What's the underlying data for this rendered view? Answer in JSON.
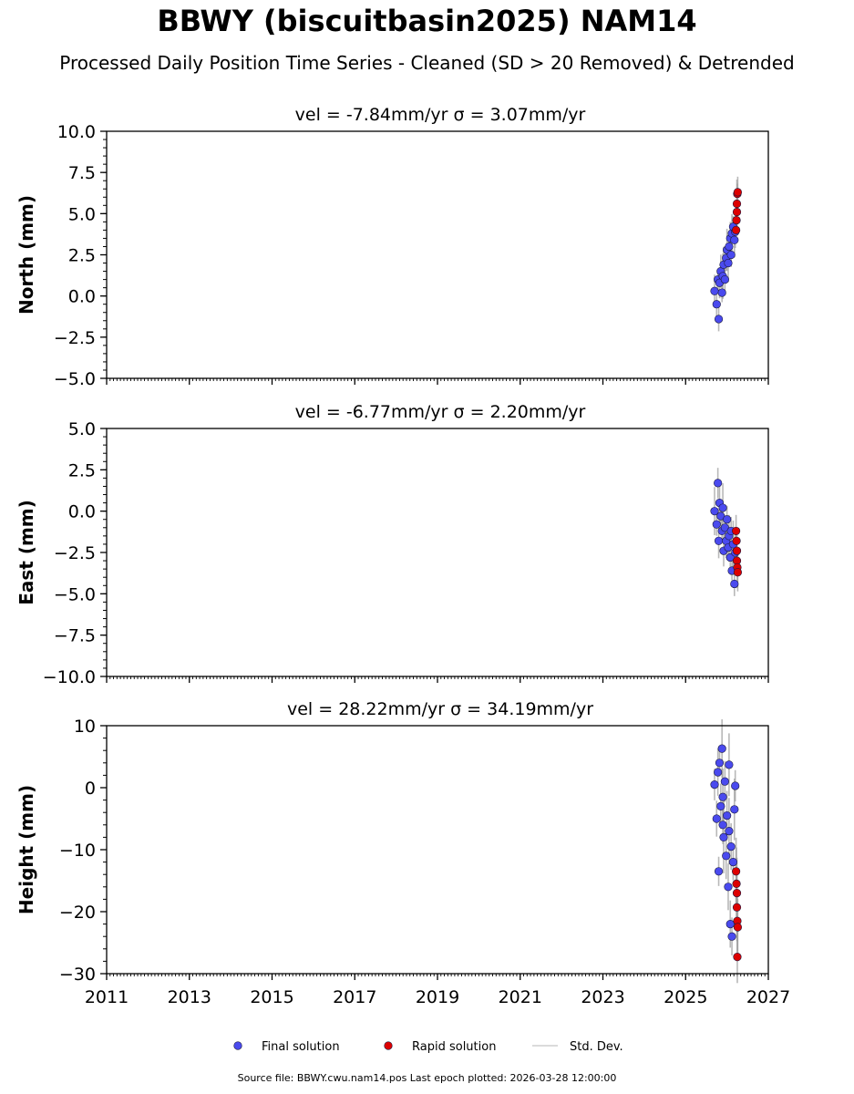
{
  "header": {
    "title": "BBWY (biscuitbasin2025) NAM14",
    "subtitle": "Processed Daily Position Time Series - Cleaned (SD > 20 Removed) & Detrended"
  },
  "footer": {
    "source": "Source file: BBWY.cwu.nam14.pos  Last epoch plotted: 2026-03-28 12:00:00"
  },
  "colors": {
    "final": "#4a4aee",
    "rapid": "#dd0000",
    "stddev": "#9a9a9a"
  },
  "legend": {
    "placement": "bottom-center",
    "final": "Final solution",
    "rapid": "Rapid solution",
    "stddev": "Std. Dev."
  },
  "chart_data": [
    {
      "type": "scatter",
      "title": "vel = -7.84mm/yr   σ = 3.07mm/yr",
      "ylabel": "North (mm)",
      "xlim": [
        2011,
        2027
      ],
      "ylim": [
        -5,
        10
      ],
      "yticks": [
        "10.0",
        "7.5",
        "5.0",
        "2.5",
        "0.0",
        "−2.5",
        "−5.0"
      ],
      "ytick_values": [
        10,
        7.5,
        5,
        2.5,
        0,
        -2.5,
        -5
      ],
      "xticks": [],
      "series": [
        {
          "name": "Final solution",
          "x": [
            2025.7,
            2025.75,
            2025.78,
            2025.8,
            2025.82,
            2025.85,
            2025.88,
            2025.9,
            2025.92,
            2025.95,
            2025.98,
            2026.0,
            2026.03,
            2026.05,
            2026.08,
            2026.1,
            2026.12,
            2026.15,
            2026.18,
            2026.2
          ],
          "y": [
            0.3,
            -0.5,
            1.0,
            -1.4,
            0.8,
            1.5,
            0.2,
            1.2,
            1.9,
            1.0,
            2.3,
            2.8,
            2.0,
            3.0,
            3.5,
            2.5,
            3.8,
            4.2,
            3.4,
            3.9
          ]
        },
        {
          "name": "Rapid solution",
          "x": [
            2026.22,
            2026.23,
            2026.24,
            2026.24,
            2026.25,
            2026.26
          ],
          "y": [
            4.0,
            4.6,
            5.1,
            5.6,
            6.2,
            6.3
          ]
        }
      ]
    },
    {
      "type": "scatter",
      "title": "vel = -6.77mm/yr   σ = 2.20mm/yr",
      "ylabel": "East (mm)",
      "xlim": [
        2011,
        2027
      ],
      "ylim": [
        -10,
        5
      ],
      "yticks": [
        "5.0",
        "2.5",
        "0.0",
        "−2.5",
        "−5.0",
        "−7.5",
        "−10.0"
      ],
      "ytick_values": [
        5,
        2.5,
        0,
        -2.5,
        -5,
        -7.5,
        -10
      ],
      "xticks": [],
      "series": [
        {
          "name": "Final solution",
          "x": [
            2025.7,
            2025.75,
            2025.78,
            2025.8,
            2025.82,
            2025.85,
            2025.88,
            2025.9,
            2025.92,
            2025.95,
            2025.98,
            2026.0,
            2026.03,
            2026.05,
            2026.08,
            2026.1,
            2026.12,
            2026.15,
            2026.18,
            2026.2
          ],
          "y": [
            0.0,
            -0.8,
            1.7,
            -1.8,
            0.5,
            -0.3,
            -1.2,
            0.2,
            -2.4,
            -1.0,
            -1.8,
            -0.5,
            -2.2,
            -1.5,
            -2.8,
            -1.2,
            -3.6,
            -2.0,
            -4.4,
            -2.5
          ]
        },
        {
          "name": "Rapid solution",
          "x": [
            2026.22,
            2026.23,
            2026.24,
            2026.24,
            2026.25,
            2026.26
          ],
          "y": [
            -1.2,
            -1.8,
            -2.4,
            -3.0,
            -3.4,
            -3.7
          ]
        }
      ]
    },
    {
      "type": "scatter",
      "title": "vel = 28.22mm/yr   σ = 34.19mm/yr",
      "ylabel": "Height (mm)",
      "xlim": [
        2011,
        2027
      ],
      "ylim": [
        -30,
        10
      ],
      "yticks": [
        "10",
        "0",
        "−10",
        "−20",
        "−30"
      ],
      "ytick_values": [
        10,
        0,
        -10,
        -20,
        -30
      ],
      "xticks": [
        "2011",
        "2013",
        "2015",
        "2017",
        "2019",
        "2021",
        "2023",
        "2025",
        "2027"
      ],
      "series": [
        {
          "name": "Final solution",
          "x": [
            2025.7,
            2025.75,
            2025.78,
            2025.8,
            2025.82,
            2025.85,
            2025.88,
            2025.9,
            2025.92,
            2025.95,
            2025.98,
            2026.0,
            2026.03,
            2026.05,
            2026.08,
            2026.1,
            2026.12,
            2026.15,
            2026.18,
            2026.2,
            2025.9,
            2026.05
          ],
          "y": [
            0.5,
            -5.0,
            2.5,
            -13.5,
            4.0,
            -3.0,
            6.3,
            -1.5,
            -8.0,
            1.0,
            -11.0,
            -4.5,
            -16.0,
            -7.0,
            -22.0,
            -9.5,
            -24.0,
            -12.0,
            -3.5,
            0.3,
            -6.0,
            3.7
          ]
        },
        {
          "name": "Rapid solution",
          "x": [
            2026.22,
            2026.23,
            2026.24,
            2026.24,
            2026.25,
            2026.26,
            2026.25
          ],
          "y": [
            -13.5,
            -15.5,
            -17.0,
            -19.3,
            -21.5,
            -22.5,
            -27.3
          ]
        }
      ]
    }
  ]
}
